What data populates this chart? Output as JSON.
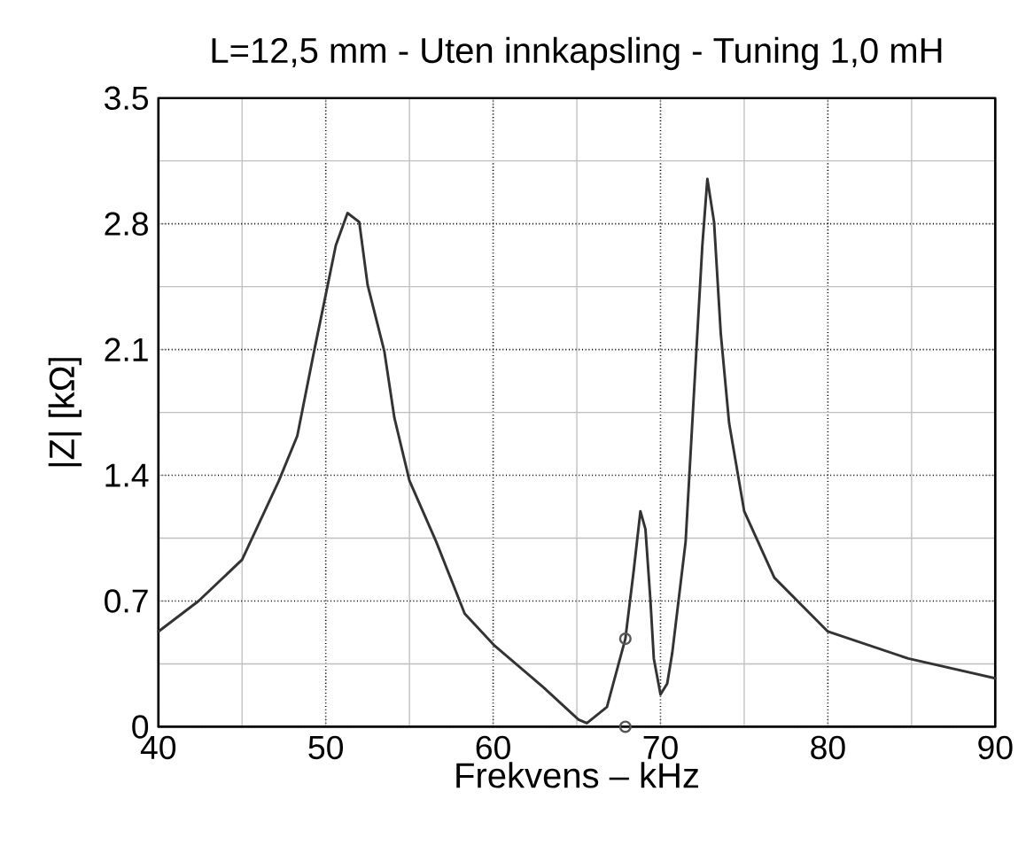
{
  "chart_data": {
    "type": "line",
    "title": "L=12,5 mm - Uten innkapsling - Tuning 1,0 mH",
    "xlabel": "Frekvens – kHz",
    "ylabel": "|Z| [kΩ]",
    "xlim": [
      40,
      90
    ],
    "ylim": [
      0,
      3.5
    ],
    "xticks": [
      40,
      50,
      60,
      70,
      80,
      90
    ],
    "yticks": [
      0,
      0.7,
      1.4,
      2.1,
      2.8,
      3.5
    ],
    "grid": true,
    "series": [
      {
        "color": "#333333",
        "x": [
          40,
          42.4,
          45.0,
          47.2,
          48.3,
          49.3,
          49.9,
          50.6,
          51.3,
          52.0,
          52.5,
          53.5,
          54.1,
          55.0,
          56.6,
          58.3,
          60.1,
          63.0,
          65.1,
          65.6,
          66.8,
          67.9,
          68.4,
          68.8,
          69.1,
          69.4,
          69.6,
          70.0,
          70.4,
          70.7,
          71.5,
          72.0,
          72.5,
          72.8,
          73.2,
          73.6,
          74.1,
          75.0,
          76.8,
          80.0,
          84.8,
          90
        ],
        "values": [
          0.53,
          0.7,
          0.93,
          1.37,
          1.62,
          2.09,
          2.36,
          2.68,
          2.86,
          2.81,
          2.46,
          2.09,
          1.72,
          1.37,
          1.03,
          0.63,
          0.45,
          0.22,
          0.04,
          0.02,
          0.11,
          0.49,
          0.87,
          1.2,
          1.1,
          0.7,
          0.38,
          0.18,
          0.24,
          0.41,
          1.03,
          1.86,
          2.68,
          3.05,
          2.81,
          2.19,
          1.69,
          1.2,
          0.83,
          0.53,
          0.38,
          0.27
        ]
      },
      {
        "type": "scatter",
        "marker": "circle",
        "color": "#555555",
        "x": [
          67.9,
          67.9
        ],
        "values": [
          0.49,
          0.0
        ]
      }
    ]
  }
}
